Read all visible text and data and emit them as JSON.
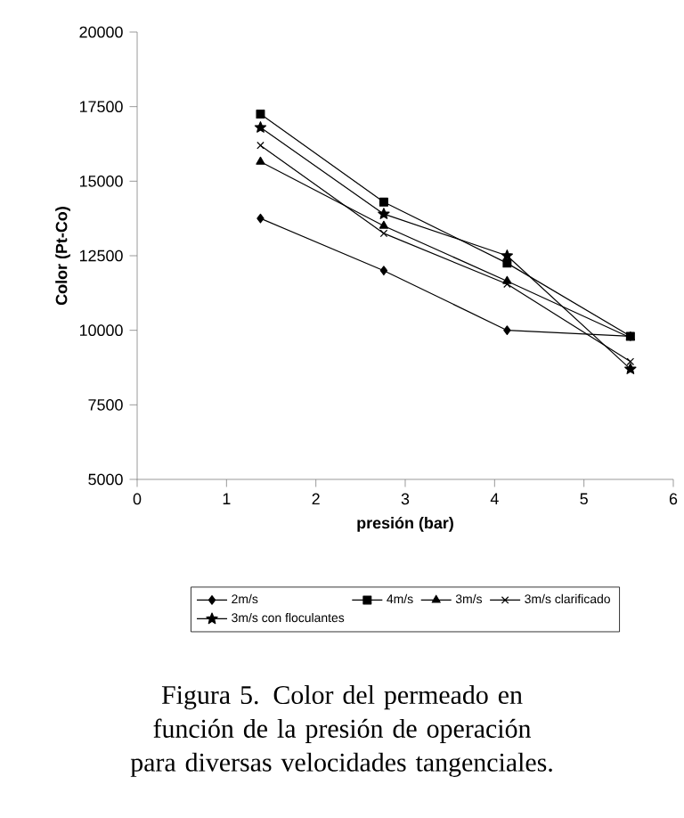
{
  "chart_data": {
    "type": "line",
    "xlabel": "presión (bar)",
    "ylabel": "Color (Pt-Co)",
    "x": [
      1.38,
      2.76,
      4.14,
      5.52
    ],
    "xlim": [
      0,
      6
    ],
    "xticks": [
      0,
      1,
      2,
      3,
      4,
      5,
      6
    ],
    "ylim": [
      5000,
      20000
    ],
    "yticks": [
      5000,
      7500,
      10000,
      12500,
      15000,
      17500,
      20000
    ],
    "grid": false,
    "legend": "bottom",
    "line_style": "solid",
    "series": [
      {
        "name": "2m/s",
        "color": "#000000",
        "marker": "diamond",
        "values": [
          13750,
          12000,
          10000,
          9800
        ]
      },
      {
        "name": "4m/s",
        "color": "#000000",
        "marker": "square",
        "values": [
          17250,
          14300,
          12250,
          9800
        ]
      },
      {
        "name": "3m/s",
        "color": "#000000",
        "marker": "triangle",
        "values": [
          15650,
          13500,
          11650,
          9750
        ]
      },
      {
        "name": "3m/s clarificado",
        "color": "#000000",
        "marker": "cross",
        "values": [
          16200,
          13250,
          11550,
          8950
        ]
      },
      {
        "name": "3m/s con floculantes",
        "color": "#000000",
        "marker": "star",
        "values": [
          16800,
          13900,
          12500,
          8700
        ]
      }
    ],
    "annotations": [
      "Figura 5. Color del permeado en función de la presión de operación para diversas velocidades tangenciales."
    ]
  }
}
